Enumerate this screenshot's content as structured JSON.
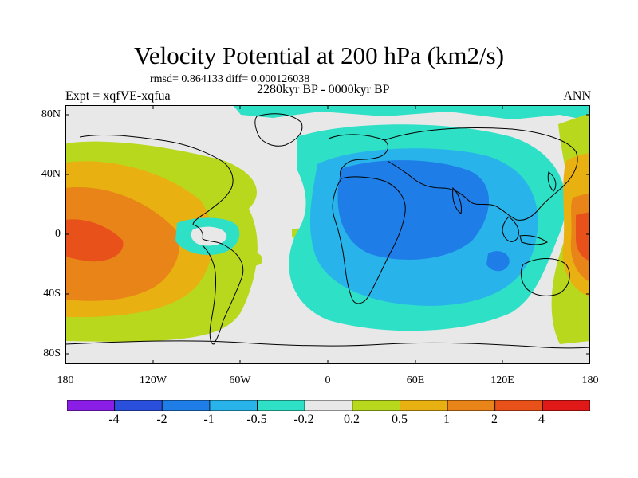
{
  "header": {
    "title": "Velocity Potential at 200 hPa (km2/s)",
    "stats": "rmsd= 0.864133 diff= 0.000126038",
    "period": "2280kyr BP - 0000kyr BP",
    "experiment": "Expt = xqfVE-xqfua",
    "season": "ANN"
  },
  "axes": {
    "lat_labels": [
      "80N",
      "40N",
      "0",
      "40S",
      "80S"
    ],
    "lon_labels": [
      "180",
      "120W",
      "60W",
      "0",
      "60E",
      "120E",
      "180"
    ]
  },
  "colorbar": {
    "labels": [
      "-4",
      "-2",
      "-1",
      "-0.5",
      "-0.2",
      "0.2",
      "0.5",
      "1",
      "2",
      "4"
    ],
    "colors": [
      "#8a1ee6",
      "#2a4fdc",
      "#1e7de6",
      "#28b4ea",
      "#2ee0c6",
      "#e8e8e8",
      "#b8d81e",
      "#e8b010",
      "#e88418",
      "#e8521a",
      "#e01818"
    ]
  },
  "chart_data": {
    "type": "map",
    "projection": "cylindrical equidistant",
    "field": "200 hPa velocity potential difference",
    "units": "km2/s",
    "lat_range": [
      -90,
      90
    ],
    "lon_range": [
      -180,
      180
    ],
    "contour_levels": [
      -4,
      -2,
      -1,
      -0.5,
      -0.2,
      0.2,
      0.5,
      1,
      2,
      4
    ],
    "features": [
      {
        "region": "Central/West Pacific near equator",
        "max": 2
      },
      {
        "region": "Western Pacific / Maritime Continent",
        "max": 2
      },
      {
        "region": "Africa / Indian Ocean",
        "min": -1
      },
      {
        "region": "Central America",
        "min": -0.5
      }
    ]
  }
}
